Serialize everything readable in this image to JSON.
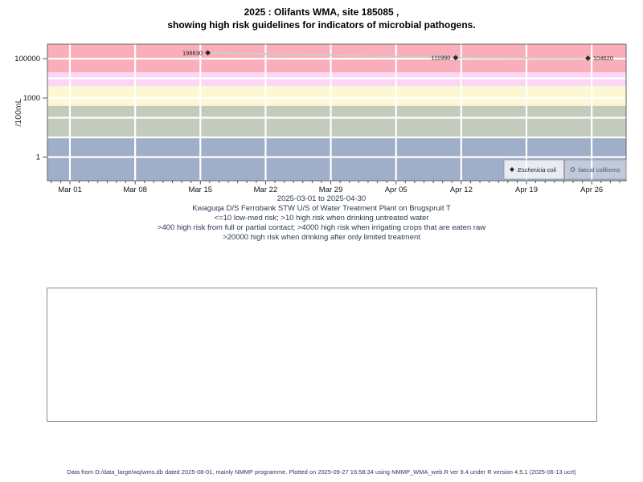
{
  "title": {
    "line1": "2025 : Olifants WMA, site 185085 ,",
    "line2": "showing high risk guidelines for indicators of microbial pathogens."
  },
  "chart_data": {
    "type": "line",
    "title": "2025 : Olifants WMA, site 185085 , showing high risk guidelines for indicators of microbial pathogens.",
    "ylabel": "/100mL",
    "xlabel": "2025-03-01 to 2025-04-30",
    "y_scale": "log10",
    "x_range": [
      "2025-03-01",
      "2025-04-30"
    ],
    "x_tick_labels": [
      "Mar 01",
      "Mar 08",
      "Mar 15",
      "Mar 22",
      "Mar 29",
      "Apr 05",
      "Apr 12",
      "Apr 19",
      "Apr 26"
    ],
    "x_tick_days": [
      0,
      7,
      14,
      21,
      28,
      35,
      42,
      49,
      56
    ],
    "y_tick_labels": [
      "1",
      "1000",
      "100000"
    ],
    "y_tick_values": [
      1,
      1000,
      100000
    ],
    "y_gridline_values": [
      1,
      10,
      100,
      1000,
      10000,
      100000
    ],
    "grid": true,
    "risk_bands": [
      {
        "name": "high-risk-drinking-limited-treatment",
        "min": 20000,
        "max": null,
        "color": "#F9AEBA"
      },
      {
        "name": "high-risk-irrigating-raw-crops",
        "min": 4000,
        "max": 20000,
        "color": "#FBD7F5"
      },
      {
        "name": "high-risk-full-partial-contact",
        "min": 400,
        "max": 4000,
        "color": "#FCF8D3"
      },
      {
        "name": "high-risk-drinking-untreated",
        "min": 10,
        "max": 400,
        "color": "#C2CBBC"
      },
      {
        "name": "low-med-risk",
        "min": null,
        "max": 10,
        "color": "#9FAEC9"
      }
    ],
    "series": [
      {
        "name": "Eschericia coli",
        "marker": "filled-diamond",
        "marker_color": "#2b2b2b",
        "line_color": "#cccccc",
        "points": [
          {
            "date": "2025-03-16",
            "day": 14.8,
            "value": 198630,
            "label": "198630",
            "label_side": "left"
          },
          {
            "date": "2025-04-11",
            "day": 41.4,
            "value": 111990,
            "label": "111990",
            "label_side": "left"
          },
          {
            "date": "2025-04-25",
            "day": 55.6,
            "value": 104620,
            "label": "104620",
            "label_side": "right"
          }
        ]
      },
      {
        "name": "faecal coliforms",
        "marker": "open-circle",
        "marker_color": "#555555",
        "line_color": "#cccccc",
        "points": []
      }
    ],
    "legend": {
      "position": "bottom-right",
      "items": [
        {
          "label": "Eschericia coli",
          "marker": "filled-diamond",
          "italic": true,
          "text_color": "#222222",
          "bg": "rgba(255,255,255,0.75)"
        },
        {
          "label": "faecal coliforms",
          "marker": "open-circle",
          "italic": false,
          "text_color": "#555555",
          "bg": "rgba(255,255,255,0.35)"
        }
      ]
    }
  },
  "subtitles": [
    "Kwaguqa D/S Ferrobank STW U/S of Water Treatment Plant on Brugspruit T",
    "<=10 low-med risk; >10 high risk when drinking untreated water",
    ">400 high risk from full or partial contact; >4000 high risk when irrigating crops that are eaten raw",
    ">20000 high risk when drinking after only limited treatment"
  ],
  "footer": "Data from D:/data_large/wq/wms.db dated 2025-08-01, mainly NMMP programme. Plotted on 2025-09-27 16:58:34 using NMMP_WMA_web.R ver 9.4 under R version 4.5.1 (2025-06-13 ucrt)"
}
